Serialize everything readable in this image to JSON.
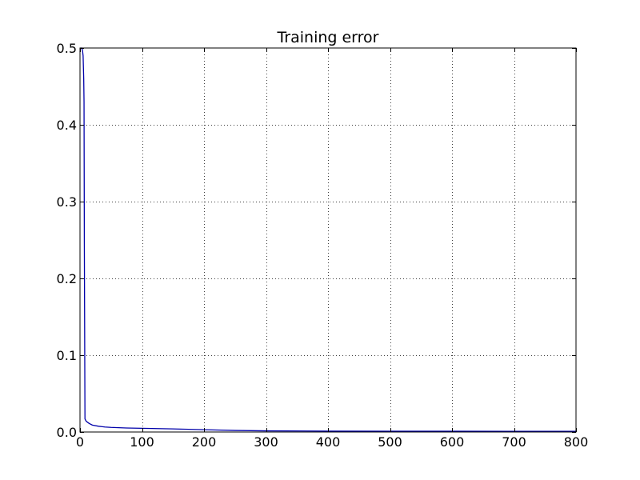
{
  "chart_data": {
    "type": "line",
    "title": "Training error",
    "xlabel": "",
    "ylabel": "",
    "xlim": [
      0,
      800
    ],
    "ylim": [
      0,
      0.5
    ],
    "xticks": [
      0,
      100,
      200,
      300,
      400,
      500,
      600,
      700,
      800
    ],
    "xtick_labels": [
      "0",
      "100",
      "200",
      "300",
      "400",
      "500",
      "600",
      "700",
      "800"
    ],
    "yticks": [
      0.0,
      0.1,
      0.2,
      0.3,
      0.4,
      0.5
    ],
    "ytick_labels": [
      "0.0",
      "0.1",
      "0.2",
      "0.3",
      "0.4",
      "0.5"
    ],
    "grid": true,
    "legend": "none",
    "series": [
      {
        "color": "#0000aa",
        "x": [
          0,
          1,
          2,
          3,
          4,
          5,
          6,
          6.5,
          7,
          8,
          10,
          15,
          20,
          30,
          40,
          50,
          75,
          100,
          150,
          200,
          250,
          300,
          400,
          500,
          600,
          700,
          800
        ],
        "y": [
          0.495,
          0.5,
          0.5,
          0.5,
          0.497,
          0.49,
          0.46,
          0.43,
          0.25,
          0.017,
          0.014,
          0.011,
          0.009,
          0.0075,
          0.0065,
          0.006,
          0.0052,
          0.0048,
          0.004,
          0.003,
          0.002,
          0.0015,
          0.0012,
          0.001,
          0.001,
          0.0009,
          0.0009
        ]
      }
    ]
  }
}
